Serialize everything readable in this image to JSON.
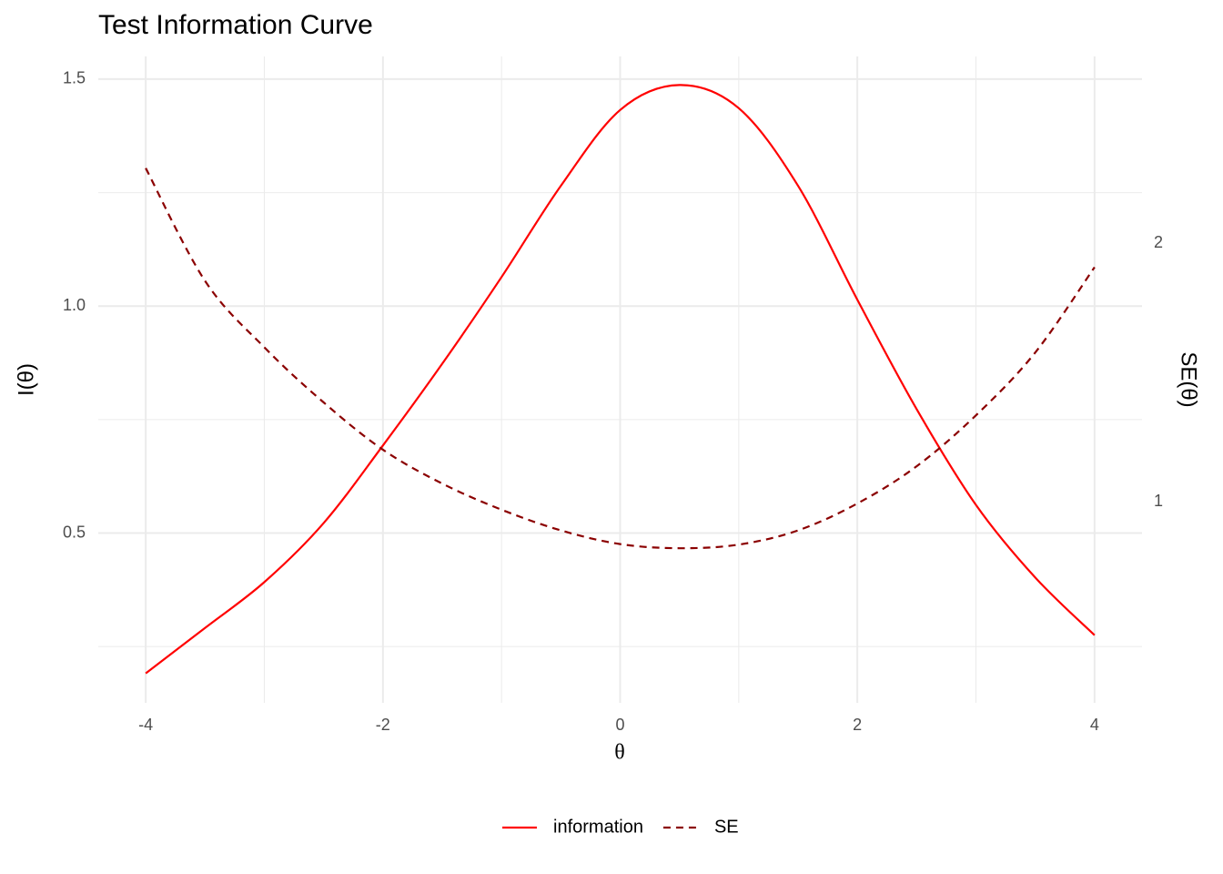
{
  "chart_data": {
    "type": "line",
    "title": "Test Information Curve",
    "x_label": "θ",
    "y_label": "I(θ)",
    "y2_label": "SE(θ)",
    "x": [
      -4,
      -3.5,
      -3,
      -2.5,
      -2,
      -1.5,
      -1,
      -0.5,
      0,
      0.5,
      1,
      1.5,
      2,
      2.5,
      3,
      3.5,
      4
    ],
    "series": [
      {
        "name": "information",
        "color": "#ff0000",
        "dash": "solid",
        "values": [
          0.191,
          0.291,
          0.392,
          0.522,
          0.693,
          0.873,
          1.064,
          1.265,
          1.432,
          1.487,
          1.436,
          1.265,
          1.014,
          0.773,
          0.562,
          0.402,
          0.275
        ]
      },
      {
        "name": "SE",
        "color": "#8b0000",
        "dash": "dashed",
        "axis": "y2",
        "values": [
          2.29,
          1.854,
          1.597,
          1.384,
          1.201,
          1.07,
          0.969,
          0.889,
          0.836,
          0.82,
          0.834,
          0.889,
          0.993,
          1.137,
          1.334,
          1.577,
          1.907
        ]
      }
    ],
    "xlim": [
      -4.4,
      4.4
    ],
    "xticks": [
      -4,
      -2,
      0,
      2,
      4
    ],
    "ylim": [
      0.126,
      1.55
    ],
    "yticks": [
      0.5,
      {
        "value": 1,
        "label": "1.0"
      },
      1.5
    ],
    "y2lim": [
      0.222,
      2.722
    ],
    "y2ticks": [
      1,
      2
    ],
    "grid": true,
    "legend": "bottom"
  }
}
